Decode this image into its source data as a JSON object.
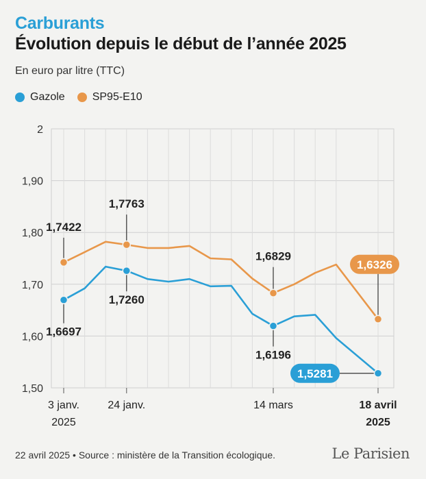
{
  "header": {
    "eyebrow": "Carburants",
    "title": "Évolution depuis le début de l’année 2025",
    "unit": "En euro par litre (TTC)"
  },
  "legend": {
    "gazole_label": "Gazole",
    "sp95_label": "SP95-E10"
  },
  "colors": {
    "gazole": "#2a9fd6",
    "sp95": "#e8974a",
    "background": "#f3f3f1"
  },
  "chart_data": {
    "type": "line",
    "title": "Évolution depuis le début de l’année 2025",
    "ylabel": "En euro par litre (TTC)",
    "ylim": [
      1.5,
      2.0
    ],
    "xlim": [
      "2025-01-03",
      "2025-04-18"
    ],
    "y_ticks": [
      "1,50",
      "1,60",
      "1,70",
      "1,80",
      "1,90",
      "2"
    ],
    "y_tick_values": [
      1.5,
      1.6,
      1.7,
      1.8,
      1.9,
      2.0
    ],
    "x_ticks": [
      {
        "date": "2025-01-03",
        "line1": "3 janv.",
        "line2": "2025",
        "bold": false
      },
      {
        "date": "2025-01-24",
        "line1": "24 janv.",
        "line2": "",
        "bold": false
      },
      {
        "date": "2025-03-14",
        "line1": "14 mars",
        "line2": "",
        "bold": false
      },
      {
        "date": "2025-04-18",
        "line1": "18 avril",
        "line2": "2025",
        "bold": true
      }
    ],
    "grid": true,
    "legend_position": "top-left",
    "series": [
      {
        "name": "Gazole",
        "color": "#2a9fd6",
        "points": [
          {
            "x": "2025-01-03",
            "y": 1.6697
          },
          {
            "x": "2025-01-10",
            "y": 1.692
          },
          {
            "x": "2025-01-17",
            "y": 1.734
          },
          {
            "x": "2025-01-24",
            "y": 1.726
          },
          {
            "x": "2025-01-31",
            "y": 1.71
          },
          {
            "x": "2025-02-07",
            "y": 1.705
          },
          {
            "x": "2025-02-14",
            "y": 1.71
          },
          {
            "x": "2025-02-21",
            "y": 1.696
          },
          {
            "x": "2025-02-28",
            "y": 1.697
          },
          {
            "x": "2025-03-07",
            "y": 1.643
          },
          {
            "x": "2025-03-14",
            "y": 1.6196
          },
          {
            "x": "2025-03-21",
            "y": 1.638
          },
          {
            "x": "2025-03-28",
            "y": 1.641
          },
          {
            "x": "2025-04-04",
            "y": 1.596
          },
          {
            "x": "2025-04-18",
            "y": 1.5281
          }
        ]
      },
      {
        "name": "SP95-E10",
        "color": "#e8974a",
        "points": [
          {
            "x": "2025-01-03",
            "y": 1.7422
          },
          {
            "x": "2025-01-10",
            "y": 1.762
          },
          {
            "x": "2025-01-17",
            "y": 1.782
          },
          {
            "x": "2025-01-24",
            "y": 1.7763
          },
          {
            "x": "2025-01-31",
            "y": 1.77
          },
          {
            "x": "2025-02-07",
            "y": 1.77
          },
          {
            "x": "2025-02-14",
            "y": 1.774
          },
          {
            "x": "2025-02-21",
            "y": 1.75
          },
          {
            "x": "2025-02-28",
            "y": 1.748
          },
          {
            "x": "2025-03-07",
            "y": 1.711
          },
          {
            "x": "2025-03-14",
            "y": 1.6829
          },
          {
            "x": "2025-03-21",
            "y": 1.7
          },
          {
            "x": "2025-03-28",
            "y": 1.722
          },
          {
            "x": "2025-04-04",
            "y": 1.738
          },
          {
            "x": "2025-04-18",
            "y": 1.6326
          }
        ]
      }
    ],
    "annotations": [
      {
        "series": "Gazole",
        "x": "2025-01-03",
        "y": 1.6697,
        "label": "1,6697",
        "style": "plain"
      },
      {
        "series": "Gazole",
        "x": "2025-01-24",
        "y": 1.726,
        "label": "1,7260",
        "style": "plain"
      },
      {
        "series": "Gazole",
        "x": "2025-03-14",
        "y": 1.6196,
        "label": "1,6196",
        "style": "plain"
      },
      {
        "series": "Gazole",
        "x": "2025-04-18",
        "y": 1.5281,
        "label": "1,5281",
        "style": "pill"
      },
      {
        "series": "SP95-E10",
        "x": "2025-01-03",
        "y": 1.7422,
        "label": "1,7422",
        "style": "plain"
      },
      {
        "series": "SP95-E10",
        "x": "2025-01-24",
        "y": 1.7763,
        "label": "1,7763",
        "style": "plain"
      },
      {
        "series": "SP95-E10",
        "x": "2025-03-14",
        "y": 1.6829,
        "label": "1,6829",
        "style": "plain"
      },
      {
        "series": "SP95-E10",
        "x": "2025-04-18",
        "y": 1.6326,
        "label": "1,6326",
        "style": "pill"
      }
    ]
  },
  "footer": {
    "source": "22 avril 2025 • Source : ministère de la Transition écologique.",
    "logo": "Le Parisien"
  }
}
